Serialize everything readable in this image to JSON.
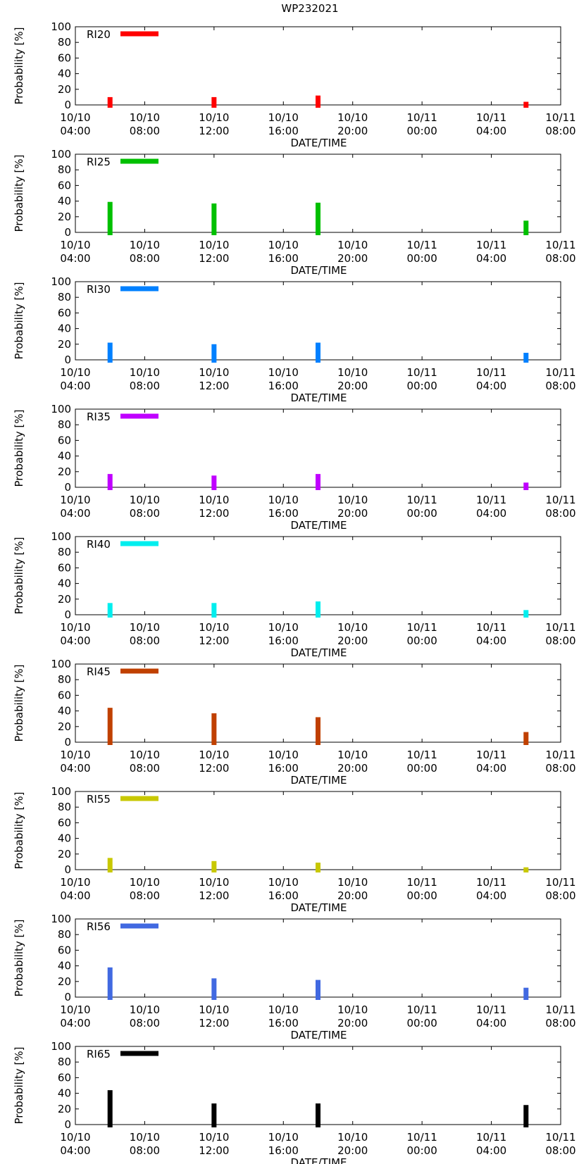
{
  "chart_data": {
    "type": "bar",
    "title": "WP232021",
    "xlabel": "DATE/TIME",
    "ylabel": "Probability [%]",
    "x_range_hours": [
      0,
      28
    ],
    "ylim": [
      0,
      100
    ],
    "y_ticks": [
      "0",
      "20",
      "40",
      "60",
      "80",
      "100"
    ],
    "x_ticks": [
      {
        "hour": 0,
        "date": "10/10",
        "time": "04:00"
      },
      {
        "hour": 4,
        "date": "10/10",
        "time": "08:00"
      },
      {
        "hour": 8,
        "date": "10/10",
        "time": "12:00"
      },
      {
        "hour": 12,
        "date": "10/10",
        "time": "16:00"
      },
      {
        "hour": 16,
        "date": "10/10",
        "time": "20:00"
      },
      {
        "hour": 20,
        "date": "10/11",
        "time": "00:00"
      },
      {
        "hour": 24,
        "date": "10/11",
        "time": "04:00"
      },
      {
        "hour": 28,
        "date": "10/11",
        "time": "08:00"
      }
    ],
    "x_hours": [
      2,
      8,
      14,
      26
    ],
    "series": [
      {
        "name": "RI20",
        "color": "#ff0000",
        "values": [
          10,
          10,
          12,
          4
        ]
      },
      {
        "name": "RI25",
        "color": "#00c000",
        "values": [
          39,
          37,
          38,
          15
        ]
      },
      {
        "name": "RI30",
        "color": "#0080ff",
        "values": [
          22,
          20,
          22,
          9
        ]
      },
      {
        "name": "RI35",
        "color": "#c000ff",
        "values": [
          17,
          15,
          17,
          6
        ]
      },
      {
        "name": "RI40",
        "color": "#00eeee",
        "values": [
          15,
          15,
          17,
          6
        ]
      },
      {
        "name": "RI45",
        "color": "#c04000",
        "values": [
          44,
          37,
          32,
          13
        ]
      },
      {
        "name": "RI55",
        "color": "#c8c800",
        "values": [
          15,
          11,
          9,
          3
        ]
      },
      {
        "name": "RI56",
        "color": "#4169e1",
        "values": [
          38,
          24,
          22,
          12
        ]
      },
      {
        "name": "RI65",
        "color": "#000000",
        "values": [
          44,
          27,
          27,
          25
        ]
      }
    ]
  }
}
